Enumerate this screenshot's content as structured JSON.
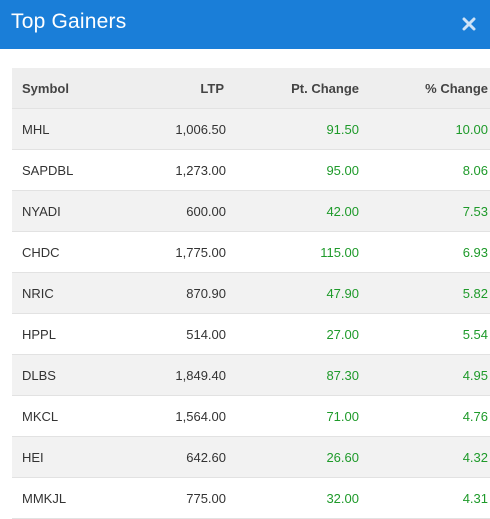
{
  "header": {
    "title": "Top Gainers",
    "close_icon": "close-icon"
  },
  "colors": {
    "header_bg": "#1a7ed8",
    "positive": "#1e9a2a"
  },
  "table": {
    "columns": [
      "Symbol",
      "LTP",
      "Pt. Change",
      "% Change"
    ],
    "rows": [
      {
        "symbol": "MHL",
        "ltp": "1,006.50",
        "pt_change": "91.50",
        "pct_change": "10.00"
      },
      {
        "symbol": "SAPDBL",
        "ltp": "1,273.00",
        "pt_change": "95.00",
        "pct_change": "8.06"
      },
      {
        "symbol": "NYADI",
        "ltp": "600.00",
        "pt_change": "42.00",
        "pct_change": "7.53"
      },
      {
        "symbol": "CHDC",
        "ltp": "1,775.00",
        "pt_change": "115.00",
        "pct_change": "6.93"
      },
      {
        "symbol": "NRIC",
        "ltp": "870.90",
        "pt_change": "47.90",
        "pct_change": "5.82"
      },
      {
        "symbol": "HPPL",
        "ltp": "514.00",
        "pt_change": "27.00",
        "pct_change": "5.54"
      },
      {
        "symbol": "DLBS",
        "ltp": "1,849.40",
        "pt_change": "87.30",
        "pct_change": "4.95"
      },
      {
        "symbol": "MKCL",
        "ltp": "1,564.00",
        "pt_change": "71.00",
        "pct_change": "4.76"
      },
      {
        "symbol": "HEI",
        "ltp": "642.60",
        "pt_change": "26.60",
        "pct_change": "4.32"
      },
      {
        "symbol": "MMKJL",
        "ltp": "775.00",
        "pt_change": "32.00",
        "pct_change": "4.31"
      }
    ]
  }
}
